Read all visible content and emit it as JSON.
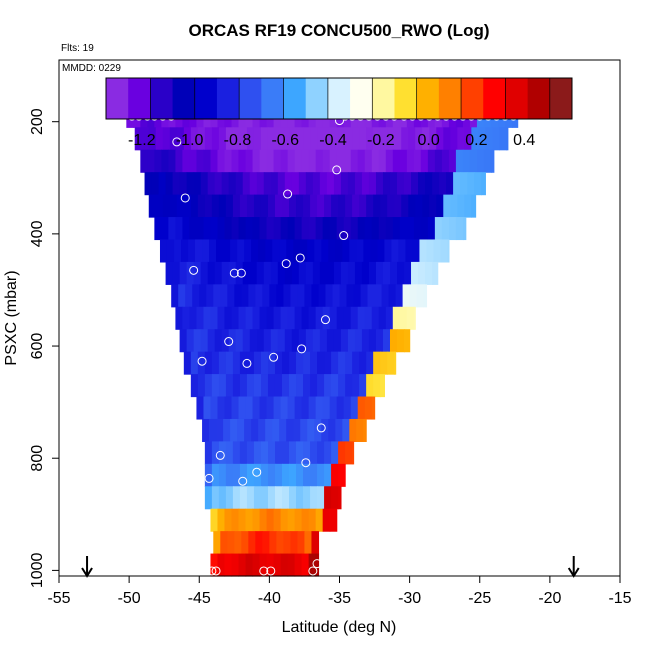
{
  "chart_data": {
    "type": "heatmap",
    "title": "ORCAS RF19 CONCU500_RWO (Log)",
    "annotation_flights": "Flts: 19",
    "annotation_date": "MMDD: 0229",
    "xlabel": "Latitude (deg N)",
    "ylabel": "PSXC (mbar)",
    "xlim": [
      -55,
      -15
    ],
    "ylim": [
      1010,
      90
    ],
    "x_ticks": [
      "-55",
      "-50",
      "-45",
      "-40",
      "-35",
      "-30",
      "-25",
      "-20",
      "-15"
    ],
    "y_ticks": [
      "200",
      "400",
      "600",
      "800",
      "1000"
    ],
    "colorbar": {
      "range": [
        -1.35,
        0.6
      ],
      "ticks": [
        "-1.2",
        "-1.0",
        "-0.8",
        "-0.6",
        "-0.4",
        "-0.2",
        "0.0",
        "0.2",
        "0.4"
      ],
      "colors": [
        "#8a2be2",
        "#6a00e0",
        "#2a00c8",
        "#0000b8",
        "#0000cc",
        "#1a20e0",
        "#2f50f0",
        "#3a7cf8",
        "#3da6ff",
        "#8fd2ff",
        "#d8f2ff",
        "#fffff0",
        "#fff8a0",
        "#ffe030",
        "#ffb000",
        "#ff8000",
        "#ff4000",
        "#ff0000",
        "#e00000",
        "#b00000",
        "#8b1a1a"
      ]
    },
    "flight_markers": {
      "latitudes": [
        -53.0,
        -18.3
      ],
      "symbol": "down-arrow"
    },
    "levels": [
      {
        "p": 190,
        "lat": [
          -50.2,
          -22.3
        ],
        "base": -1.22,
        "grad": -0.12,
        "edge": -0.68
      },
      {
        "p": 230,
        "lat": [
          -49.6,
          -23.0
        ],
        "base": -1.15,
        "grad": -0.25,
        "edge": -0.68
      },
      {
        "p": 270,
        "lat": [
          -49.2,
          -24.0
        ],
        "base": -1.1,
        "grad": -0.25,
        "edge": -0.68
      },
      {
        "p": 310,
        "lat": [
          -48.9,
          -24.6
        ],
        "base": -1.0,
        "grad": -0.22,
        "edge": -0.55
      },
      {
        "p": 350,
        "lat": [
          -48.6,
          -25.3
        ],
        "base": -0.95,
        "grad": -0.22,
        "edge": -0.55
      },
      {
        "p": 390,
        "lat": [
          -48.2,
          -26.0
        ],
        "base": -0.9,
        "grad": -0.2,
        "edge": -0.5
      },
      {
        "p": 430,
        "lat": [
          -47.8,
          -27.2
        ],
        "base": -0.86,
        "grad": -0.12,
        "edge": -0.45
      },
      {
        "p": 470,
        "lat": [
          -47.4,
          -28.0
        ],
        "base": -0.85,
        "grad": -0.1,
        "edge": -0.42
      },
      {
        "p": 510,
        "lat": [
          -47.0,
          -28.8
        ],
        "base": -0.84,
        "grad": -0.08,
        "edge": -0.35
      },
      {
        "p": 550,
        "lat": [
          -46.7,
          -29.6
        ],
        "base": -0.83,
        "grad": -0.06,
        "edge": -0.2
      },
      {
        "p": 590,
        "lat": [
          -46.4,
          -30.0
        ],
        "base": -0.82,
        "grad": -0.05,
        "edge": 0.0
      },
      {
        "p": 630,
        "lat": [
          -46.1,
          -31.0
        ],
        "base": -0.82,
        "grad": -0.03,
        "edge": -0.05
      },
      {
        "p": 670,
        "lat": [
          -45.6,
          -31.8
        ],
        "base": -0.8,
        "grad": -0.02,
        "edge": -0.1
      },
      {
        "p": 710,
        "lat": [
          -45.2,
          -32.5
        ],
        "base": -0.8,
        "grad": 0.0,
        "edge": 0.15
      },
      {
        "p": 750,
        "lat": [
          -44.8,
          -33.1
        ],
        "base": -0.78,
        "grad": 0.0,
        "edge": 0.1
      },
      {
        "p": 790,
        "lat": [
          -44.6,
          -34.0
        ],
        "base": -0.76,
        "grad": 0.0,
        "edge": 0.2
      },
      {
        "p": 830,
        "lat": [
          -44.6,
          -34.6
        ],
        "base": -0.66,
        "grad": 0.05,
        "edge": 0.3
      },
      {
        "p": 870,
        "lat": [
          -44.6,
          -34.9
        ],
        "base": -0.5,
        "grad": 0.05,
        "edge": 0.4
      },
      {
        "p": 910,
        "lat": [
          -44.2,
          -35.2
        ],
        "base": 0.0,
        "grad": 0.1,
        "edge": 0.35
      },
      {
        "p": 950,
        "lat": [
          -44.0,
          -36.5
        ],
        "base": 0.1,
        "grad": 0.15,
        "edge": 0.4
      },
      {
        "p": 990,
        "lat": [
          -44.2,
          -36.5
        ],
        "base": 0.35,
        "grad": 0.05,
        "edge": 0.5
      }
    ],
    "sample_points": [
      [
        -49.8,
        190
      ],
      [
        -49.3,
        190
      ],
      [
        -48.7,
        190
      ],
      [
        -48.2,
        190
      ],
      [
        -47.6,
        190
      ],
      [
        -47.0,
        190
      ],
      [
        -35.0,
        198
      ],
      [
        -34.6,
        190
      ],
      [
        -34.1,
        190
      ],
      [
        -33.5,
        190
      ],
      [
        -32.9,
        190
      ],
      [
        -32.3,
        190
      ],
      [
        -31.7,
        190
      ],
      [
        -31.1,
        190
      ],
      [
        -30.4,
        190
      ],
      [
        -29.8,
        190
      ],
      [
        -29.2,
        190
      ],
      [
        -28.6,
        190
      ],
      [
        -28.0,
        190
      ],
      [
        -27.4,
        190
      ],
      [
        -26.8,
        190
      ],
      [
        -26.2,
        190
      ],
      [
        -25.6,
        190
      ],
      [
        -25.0,
        190
      ],
      [
        -24.4,
        190
      ],
      [
        -23.8,
        190
      ],
      [
        -23.2,
        190
      ],
      [
        -22.6,
        190
      ],
      [
        -46.6,
        236
      ],
      [
        -35.2,
        286
      ],
      [
        -38.7,
        329
      ],
      [
        -46.0,
        336
      ],
      [
        -34.7,
        403
      ],
      [
        -37.8,
        443
      ],
      [
        -38.8,
        453
      ],
      [
        -45.4,
        465
      ],
      [
        -42.5,
        470
      ],
      [
        -42.0,
        470
      ],
      [
        -36.0,
        553
      ],
      [
        -42.9,
        592
      ],
      [
        -37.7,
        605
      ],
      [
        -39.7,
        620
      ],
      [
        -44.8,
        627
      ],
      [
        -41.6,
        631
      ],
      [
        -36.3,
        746
      ],
      [
        -43.5,
        795
      ],
      [
        -37.4,
        808
      ],
      [
        -40.9,
        825
      ],
      [
        -44.3,
        836
      ],
      [
        -41.9,
        841
      ],
      [
        -44.1,
        1001
      ],
      [
        -43.8,
        1001
      ],
      [
        -40.4,
        1001
      ],
      [
        -39.9,
        1001
      ],
      [
        -36.9,
        1001
      ],
      [
        -36.6,
        988
      ]
    ]
  }
}
